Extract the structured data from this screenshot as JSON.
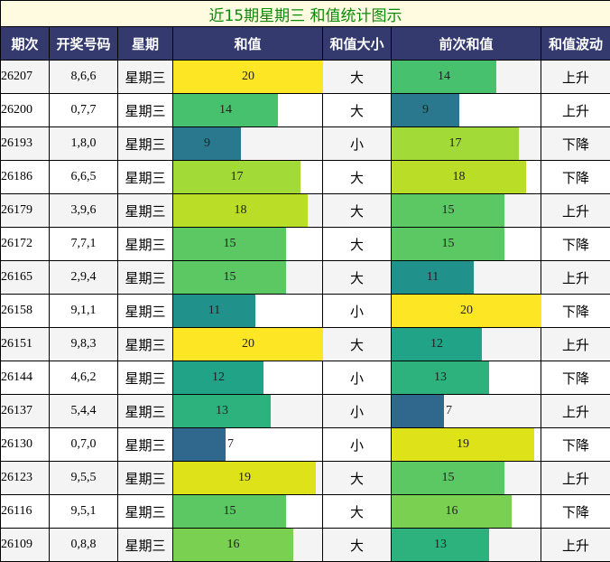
{
  "chart_data": {
    "type": "table",
    "title": "近15期星期三 和值统计图示",
    "columns": [
      "期次",
      "开奖号码",
      "星期",
      "和值",
      "和值大小",
      "前次和值",
      "和值波动"
    ],
    "bar_max": 20,
    "rows": [
      {
        "issue": "26207",
        "numbers": "8,6,6",
        "weekday": "星期三",
        "sum": 20,
        "size": "大",
        "prev_sum": 14,
        "trend": "上升"
      },
      {
        "issue": "26200",
        "numbers": "0,7,7",
        "weekday": "星期三",
        "sum": 14,
        "size": "大",
        "prev_sum": 9,
        "trend": "上升"
      },
      {
        "issue": "26193",
        "numbers": "1,8,0",
        "weekday": "星期三",
        "sum": 9,
        "size": "小",
        "prev_sum": 17,
        "trend": "下降"
      },
      {
        "issue": "26186",
        "numbers": "6,6,5",
        "weekday": "星期三",
        "sum": 17,
        "size": "大",
        "prev_sum": 18,
        "trend": "下降"
      },
      {
        "issue": "26179",
        "numbers": "3,9,6",
        "weekday": "星期三",
        "sum": 18,
        "size": "大",
        "prev_sum": 15,
        "trend": "上升"
      },
      {
        "issue": "26172",
        "numbers": "7,7,1",
        "weekday": "星期三",
        "sum": 15,
        "size": "大",
        "prev_sum": 15,
        "trend": "下降"
      },
      {
        "issue": "26165",
        "numbers": "2,9,4",
        "weekday": "星期三",
        "sum": 15,
        "size": "大",
        "prev_sum": 11,
        "trend": "上升"
      },
      {
        "issue": "26158",
        "numbers": "9,1,1",
        "weekday": "星期三",
        "sum": 11,
        "size": "小",
        "prev_sum": 20,
        "trend": "下降"
      },
      {
        "issue": "26151",
        "numbers": "9,8,3",
        "weekday": "星期三",
        "sum": 20,
        "size": "大",
        "prev_sum": 12,
        "trend": "上升"
      },
      {
        "issue": "26144",
        "numbers": "4,6,2",
        "weekday": "星期三",
        "sum": 12,
        "size": "小",
        "prev_sum": 13,
        "trend": "下降"
      },
      {
        "issue": "26137",
        "numbers": "5,4,4",
        "weekday": "星期三",
        "sum": 13,
        "size": "小",
        "prev_sum": 7,
        "trend": "上升"
      },
      {
        "issue": "26130",
        "numbers": "0,7,0",
        "weekday": "星期三",
        "sum": 7,
        "size": "小",
        "prev_sum": 19,
        "trend": "下降"
      },
      {
        "issue": "26123",
        "numbers": "9,5,5",
        "weekday": "星期三",
        "sum": 19,
        "size": "大",
        "prev_sum": 15,
        "trend": "上升"
      },
      {
        "issue": "26116",
        "numbers": "9,5,1",
        "weekday": "星期三",
        "sum": 15,
        "size": "大",
        "prev_sum": 16,
        "trend": "下降"
      },
      {
        "issue": "26109",
        "numbers": "0,8,8",
        "weekday": "星期三",
        "sum": 16,
        "size": "大",
        "prev_sum": 13,
        "trend": "上升"
      }
    ],
    "bar_colors": {
      "7": "#30678d",
      "9": "#2a788e",
      "11": "#21918c",
      "12": "#20a386",
      "13": "#2db27d",
      "14": "#48c16e",
      "15": "#5cc863",
      "16": "#7ad151",
      "17": "#a2da37",
      "18": "#bade28",
      "19": "#dde318",
      "20": "#fde725"
    }
  }
}
